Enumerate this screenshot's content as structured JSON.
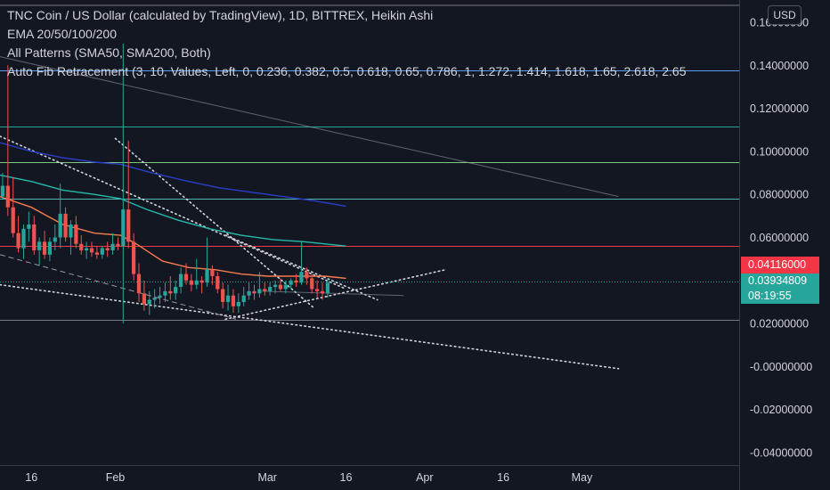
{
  "legend": {
    "title": "TNC Coin / US Dollar (calculated by TradingView), 1D, BITTREX, Heikin Ashi",
    "ema": "EMA 20/50/100/200",
    "patterns": "All Patterns (SMA50, SMA200, Both)",
    "fib": "Auto Fib Retracement (3, 10, Values, Left, 0, 0.236, 0.382, 0.5, 0.618, 0.65, 0.786, 1, 1.272, 1.414, 1.618, 1.65, 2.618, 2.65"
  },
  "currency_button": "USD",
  "price_tags": {
    "last_price": "0.04116000",
    "close_price": "0.03934809",
    "countdown": "08:19:55"
  },
  "colors": {
    "background": "#131722",
    "up": "#26a69a",
    "down": "#ef5350",
    "text": "#d1d4dc"
  },
  "chart_data": {
    "type": "candlestick",
    "y_ticks": [
      "0.16000000",
      "0.14000000",
      "0.12000000",
      "0.10000000",
      "0.08000000",
      "0.06000000",
      "0.02000000",
      "-0.00000000",
      "-0.02000000",
      "-0.04000000"
    ],
    "x_ticks": [
      "16",
      "Feb",
      "Mar",
      "16",
      "Apr",
      "16",
      "May"
    ],
    "ylim": [
      -0.045,
      0.17
    ],
    "xlim": [
      0,
      141
    ],
    "x_tick_positions": [
      6,
      22,
      51,
      66,
      81,
      96,
      111
    ],
    "horizontal_levels": [
      {
        "value": 0.1375,
        "color": "#5b9cf6"
      },
      {
        "value": 0.1115,
        "color": "#26a69a"
      },
      {
        "value": 0.095,
        "color": "#81c784"
      },
      {
        "value": 0.078,
        "color": "#4db6ac"
      },
      {
        "value": 0.056,
        "color": "#f23645"
      },
      {
        "value": 0.0219,
        "color": "#787b86"
      }
    ],
    "candles": [
      [
        0.079,
        0.09,
        0.078,
        0.084
      ],
      [
        0.084,
        0.14,
        0.07,
        0.074
      ],
      [
        0.074,
        0.088,
        0.06,
        0.062
      ],
      [
        0.062,
        0.07,
        0.053,
        0.055
      ],
      [
        0.055,
        0.066,
        0.05,
        0.064
      ],
      [
        0.064,
        0.072,
        0.058,
        0.066
      ],
      [
        0.066,
        0.07,
        0.052,
        0.054
      ],
      [
        0.054,
        0.06,
        0.047,
        0.058
      ],
      [
        0.058,
        0.063,
        0.05,
        0.052
      ],
      [
        0.052,
        0.06,
        0.049,
        0.058
      ],
      [
        0.058,
        0.066,
        0.054,
        0.06
      ],
      [
        0.06,
        0.085,
        0.055,
        0.071
      ],
      [
        0.071,
        0.074,
        0.058,
        0.06
      ],
      [
        0.06,
        0.068,
        0.052,
        0.066
      ],
      [
        0.066,
        0.07,
        0.055,
        0.057
      ],
      [
        0.057,
        0.061,
        0.052,
        0.054
      ],
      [
        0.054,
        0.058,
        0.05,
        0.055
      ],
      [
        0.055,
        0.058,
        0.051,
        0.053
      ],
      [
        0.053,
        0.056,
        0.05,
        0.052
      ],
      [
        0.052,
        0.056,
        0.05,
        0.055
      ],
      [
        0.055,
        0.058,
        0.051,
        0.054
      ],
      [
        0.054,
        0.062,
        0.052,
        0.057
      ],
      [
        0.057,
        0.06,
        0.054,
        0.056
      ],
      [
        0.056,
        0.15,
        0.02,
        0.073
      ],
      [
        0.073,
        0.105,
        0.055,
        0.058
      ],
      [
        0.058,
        0.062,
        0.04,
        0.043
      ],
      [
        0.043,
        0.048,
        0.03,
        0.034
      ],
      [
        0.034,
        0.04,
        0.026,
        0.029
      ],
      [
        0.029,
        0.035,
        0.024,
        0.031
      ],
      [
        0.031,
        0.036,
        0.027,
        0.032
      ],
      [
        0.032,
        0.037,
        0.029,
        0.033
      ],
      [
        0.033,
        0.039,
        0.03,
        0.035
      ],
      [
        0.035,
        0.042,
        0.031,
        0.034
      ],
      [
        0.034,
        0.04,
        0.031,
        0.037
      ],
      [
        0.037,
        0.046,
        0.034,
        0.043
      ],
      [
        0.043,
        0.048,
        0.038,
        0.04
      ],
      [
        0.04,
        0.043,
        0.035,
        0.038
      ],
      [
        0.038,
        0.05,
        0.036,
        0.04
      ],
      [
        0.04,
        0.042,
        0.034,
        0.039
      ],
      [
        0.039,
        0.06,
        0.037,
        0.045
      ],
      [
        0.045,
        0.047,
        0.038,
        0.042
      ],
      [
        0.042,
        0.044,
        0.034,
        0.036
      ],
      [
        0.036,
        0.039,
        0.027,
        0.03
      ],
      [
        0.03,
        0.038,
        0.026,
        0.033
      ],
      [
        0.033,
        0.036,
        0.025,
        0.028
      ],
      [
        0.028,
        0.034,
        0.025,
        0.03
      ],
      [
        0.03,
        0.037,
        0.028,
        0.033
      ],
      [
        0.033,
        0.039,
        0.031,
        0.035
      ],
      [
        0.035,
        0.038,
        0.031,
        0.034
      ],
      [
        0.034,
        0.044,
        0.032,
        0.036
      ],
      [
        0.036,
        0.039,
        0.033,
        0.035
      ],
      [
        0.035,
        0.039,
        0.033,
        0.037
      ],
      [
        0.037,
        0.04,
        0.034,
        0.038
      ],
      [
        0.038,
        0.041,
        0.035,
        0.036
      ],
      [
        0.036,
        0.04,
        0.034,
        0.038
      ],
      [
        0.038,
        0.041,
        0.036,
        0.04
      ],
      [
        0.04,
        0.043,
        0.037,
        0.039
      ],
      [
        0.039,
        0.058,
        0.038,
        0.044
      ],
      [
        0.044,
        0.046,
        0.038,
        0.041
      ],
      [
        0.041,
        0.043,
        0.034,
        0.036
      ],
      [
        0.036,
        0.04,
        0.032,
        0.035
      ],
      [
        0.035,
        0.039,
        0.031,
        0.034
      ],
      [
        0.034,
        0.041,
        0.032,
        0.039
      ]
    ],
    "ema_lines": [
      {
        "color": "#f57c4e",
        "points": [
          [
            0,
            0.079
          ],
          [
            6,
            0.074
          ],
          [
            12,
            0.066
          ],
          [
            18,
            0.062
          ],
          [
            23,
            0.061
          ],
          [
            26,
            0.057
          ],
          [
            31,
            0.049
          ],
          [
            36,
            0.046
          ],
          [
            41,
            0.045
          ],
          [
            46,
            0.043
          ],
          [
            51,
            0.042
          ],
          [
            56,
            0.042
          ],
          [
            62,
            0.042
          ],
          [
            66,
            0.041
          ]
        ]
      },
      {
        "color": "#26b9ac",
        "points": [
          [
            0,
            0.089
          ],
          [
            6,
            0.086
          ],
          [
            12,
            0.082
          ],
          [
            18,
            0.08
          ],
          [
            23,
            0.078
          ],
          [
            28,
            0.073
          ],
          [
            34,
            0.068
          ],
          [
            40,
            0.064
          ],
          [
            46,
            0.061
          ],
          [
            52,
            0.059
          ],
          [
            58,
            0.058
          ],
          [
            66,
            0.056
          ]
        ]
      },
      {
        "color": "#2a3ec7",
        "points": [
          [
            0,
            0.104
          ],
          [
            6,
            0.1
          ],
          [
            12,
            0.097
          ],
          [
            18,
            0.095
          ],
          [
            23,
            0.094
          ],
          [
            29,
            0.09
          ],
          [
            36,
            0.086
          ],
          [
            42,
            0.083
          ],
          [
            48,
            0.081
          ],
          [
            54,
            0.079
          ],
          [
            60,
            0.077
          ],
          [
            66,
            0.0745
          ]
        ]
      }
    ],
    "trendlines": [
      {
        "style": "dotted",
        "color": "#d1d4dc",
        "points": [
          [
            0,
            0.107
          ],
          [
            66,
            0.036
          ]
        ]
      },
      {
        "style": "dotted",
        "color": "#d1d4dc",
        "points": [
          [
            22,
            0.106
          ],
          [
            60,
            0.027
          ]
        ]
      },
      {
        "style": "dotted",
        "color": "#d1d4dc",
        "points": [
          [
            0,
            0.038
          ],
          [
            118,
            -0.001
          ]
        ]
      },
      {
        "style": "dotted",
        "color": "#d1d4dc",
        "points": [
          [
            43,
            0.022
          ],
          [
            85,
            0.045
          ]
        ]
      },
      {
        "style": "dotted",
        "color": "#d1d4dc",
        "points": [
          [
            43,
            0.061
          ],
          [
            72,
            0.031
          ]
        ]
      },
      {
        "style": "thin",
        "color": "#9598a1",
        "points": [
          [
            0,
            0.144
          ],
          [
            118,
            0.079
          ]
        ]
      },
      {
        "style": "dashed",
        "color": "#9598a1",
        "points": [
          [
            0,
            0.052
          ],
          [
            45,
            0.022
          ]
        ]
      },
      {
        "style": "thin",
        "color": "#9598a1",
        "points": [
          [
            50,
            0.035
          ],
          [
            77,
            0.033
          ]
        ]
      }
    ],
    "current_price_line": 0.0393,
    "last_price_line": 0.04116
  }
}
